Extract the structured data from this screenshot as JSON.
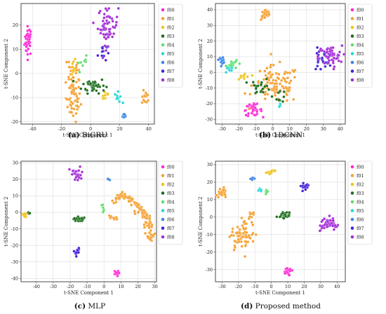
{
  "legend_labels": [
    "f00",
    "f01",
    "f02",
    "f03",
    "f04",
    "f05",
    "f06",
    "f07",
    "f08"
  ],
  "palette": [
    "#ff2bd6",
    "#f5a233",
    "#eec51e",
    "#1e6e1e",
    "#5fe06e",
    "#25d8d8",
    "#3b86e8",
    "#4522d6",
    "#a52fd8"
  ],
  "chart_data": [
    {
      "type": "scatter",
      "caption_letter": "(a)",
      "caption_name": "BiGRU",
      "xlabel": "t-SNE Component 1",
      "ylabel": "t-SNE Component 2",
      "xlim": [
        -48,
        44
      ],
      "ylim": [
        -21,
        29
      ],
      "xticks": [
        -40,
        -20,
        0,
        20,
        40
      ],
      "yticks": [
        -20,
        -10,
        0,
        10,
        20
      ],
      "grid": true,
      "legend": "right",
      "clusters": [
        {
          "name": "f00",
          "cx": -43,
          "cy": 13.5,
          "sx": 1.3,
          "sy": 3,
          "n": 36
        },
        {
          "name": "f01",
          "cx": -12,
          "cy": -10,
          "sx": 2.5,
          "sy": 5,
          "n": 60
        },
        {
          "name": "f01",
          "cx": 38,
          "cy": -10,
          "sx": 1.3,
          "sy": 1.4,
          "n": 14
        },
        {
          "name": "f01",
          "cx": -12,
          "cy": 2,
          "sx": 2,
          "sy": 2.5,
          "n": 16
        },
        {
          "name": "f02",
          "cx": -13,
          "cy": 3,
          "sx": 1.5,
          "sy": 2,
          "n": 10
        },
        {
          "name": "f02",
          "cx": 10,
          "cy": -9,
          "sx": 1.5,
          "sy": 1.2,
          "n": 12
        },
        {
          "name": "f03",
          "cx": 2,
          "cy": -5,
          "sx": 4,
          "sy": 1.6,
          "n": 40
        },
        {
          "name": "f04",
          "cx": -5,
          "cy": 4,
          "sx": 2.5,
          "sy": 1.5,
          "n": 8
        },
        {
          "name": "f05",
          "cx": 19,
          "cy": -10,
          "sx": 1.2,
          "sy": 1.1,
          "n": 10
        },
        {
          "name": "f06",
          "cx": 23,
          "cy": -17.5,
          "sx": 0.6,
          "sy": 0.7,
          "n": 9
        },
        {
          "name": "f07",
          "cx": 8,
          "cy": 9,
          "sx": 1.5,
          "sy": 2.2,
          "n": 12
        },
        {
          "name": "f08",
          "cx": 12,
          "cy": 20,
          "sx": 3.5,
          "sy": 4,
          "n": 60
        }
      ]
    },
    {
      "type": "scatter",
      "caption_letter": "(b)",
      "caption_name": "1DCNN",
      "xlabel": "t-SNE Component 1",
      "ylabel": "t-SNE Component 2",
      "xlim": [
        -34,
        43
      ],
      "ylim": [
        -33,
        44
      ],
      "xticks": [
        -30,
        -20,
        -10,
        0,
        10,
        20,
        30,
        40
      ],
      "yticks": [
        -30,
        -20,
        -10,
        0,
        10,
        20,
        30,
        40
      ],
      "grid": true,
      "legend": "right",
      "clusters": [
        {
          "name": "f00",
          "cx": -12,
          "cy": -24,
          "sx": 2.8,
          "sy": 1.8,
          "n": 36
        },
        {
          "name": "f01",
          "cx": -4,
          "cy": 37,
          "sx": 1.5,
          "sy": 1.8,
          "n": 30
        },
        {
          "name": "f01",
          "cx": 2,
          "cy": -8,
          "sx": 7,
          "sy": 6,
          "n": 95
        },
        {
          "name": "f02",
          "cx": -17,
          "cy": -3,
          "sx": 2,
          "sy": 1.5,
          "n": 10
        },
        {
          "name": "f03",
          "cx": -7,
          "cy": -9,
          "sx": 3,
          "sy": 2.5,
          "n": 20
        },
        {
          "name": "f03",
          "cx": 4,
          "cy": -15,
          "sx": 2,
          "sy": 2,
          "n": 10
        },
        {
          "name": "f04",
          "cx": -23,
          "cy": 5,
          "sx": 2.5,
          "sy": 1.2,
          "n": 16
        },
        {
          "name": "f05",
          "cx": -26,
          "cy": 2,
          "sx": 1.2,
          "sy": 1.5,
          "n": 8
        },
        {
          "name": "f05",
          "cx": 4,
          "cy": -21,
          "sx": 0.8,
          "sy": 0.8,
          "n": 5
        },
        {
          "name": "f06",
          "cx": -30,
          "cy": 8,
          "sx": 1,
          "sy": 1,
          "n": 12
        },
        {
          "name": "f07",
          "cx": 29,
          "cy": 8,
          "sx": 3,
          "sy": 3.5,
          "n": 30
        },
        {
          "name": "f08",
          "cx": 34,
          "cy": 10,
          "sx": 3.5,
          "sy": 3.5,
          "n": 50
        }
      ]
    },
    {
      "type": "scatter",
      "caption_letter": "(c)",
      "caption_name": "MLP",
      "xlabel": "t-SNE Component 1",
      "ylabel": "t-SNE Component 2",
      "xlim": [
        -49,
        31
      ],
      "ylim": [
        -42,
        31
      ],
      "xticks": [
        -40,
        -30,
        -20,
        -10,
        0,
        10,
        20,
        30
      ],
      "yticks": [
        -40,
        -30,
        -20,
        -10,
        0,
        10,
        20,
        30
      ],
      "grid": true,
      "legend": "right",
      "clusters": [
        {
          "name": "f00",
          "cx": 7,
          "cy": -37,
          "sx": 0.8,
          "sy": 0.8,
          "n": 12
        },
        {
          "name": "f01",
          "cx": 5,
          "cy": -3.5,
          "sx": 1.5,
          "sy": 1,
          "n": 8
        },
        {
          "name": "f02",
          "cx": -47,
          "cy": -1.5,
          "sx": 0.6,
          "sy": 0.7,
          "n": 12
        },
        {
          "name": "f03",
          "cx": -44,
          "cy": -1,
          "sx": 0.4,
          "sy": 0.5,
          "n": 3
        },
        {
          "name": "f03",
          "cx": -15,
          "cy": -4,
          "sx": 1.5,
          "sy": 0.8,
          "n": 22
        },
        {
          "name": "f04",
          "cx": -1,
          "cy": 2.5,
          "sx": 0.5,
          "sy": 1.5,
          "n": 6
        },
        {
          "name": "f06",
          "cx": 3,
          "cy": 20,
          "sx": 0.4,
          "sy": 0.5,
          "n": 4
        },
        {
          "name": "f07",
          "cx": -16,
          "cy": -24,
          "sx": 0.8,
          "sy": 1.2,
          "n": 14
        },
        {
          "name": "f08",
          "cx": -16,
          "cy": 23,
          "sx": 2.2,
          "sy": 2.2,
          "n": 26
        }
      ],
      "curves": [
        {
          "name": "f01",
          "points": [
            [
              6,
              7
            ],
            [
              10,
              10
            ],
            [
              14,
              9
            ],
            [
              19,
              5
            ],
            [
              22,
              1
            ],
            [
              25,
              -3
            ],
            [
              27,
              -10
            ],
            [
              28,
              -16
            ]
          ],
          "n": 120,
          "jitter": 1.2
        }
      ]
    },
    {
      "type": "scatter",
      "caption_letter": "(d)",
      "caption_name": "Proposed method",
      "xlabel": "t-SNE Component 1",
      "ylabel": "t-SNE Component 2",
      "xlim": [
        -34,
        45
      ],
      "ylim": [
        -37,
        32
      ],
      "xticks": [
        -30,
        -20,
        -10,
        0,
        10,
        20,
        30,
        40
      ],
      "yticks": [
        -30,
        -20,
        -10,
        0,
        10,
        20,
        30
      ],
      "grid": true,
      "legend": "right",
      "clusters": [
        {
          "name": "f00",
          "cx": 10,
          "cy": -31,
          "sx": 1.3,
          "sy": 1,
          "n": 20
        },
        {
          "name": "f01",
          "cx": -30,
          "cy": 14,
          "sx": 1.5,
          "sy": 1.4,
          "n": 22
        },
        {
          "name": "f01",
          "cx": -17,
          "cy": -12,
          "sx": 3.5,
          "sy": 3.5,
          "n": 50
        },
        {
          "name": "f02",
          "cx": 0,
          "cy": 26,
          "sx": 1,
          "sy": 0.8,
          "n": 16
        },
        {
          "name": "f03",
          "cx": 8,
          "cy": 1,
          "sx": 1.8,
          "sy": 1,
          "n": 26
        },
        {
          "name": "f04",
          "cx": -3,
          "cy": 15,
          "sx": 0.7,
          "sy": 0.8,
          "n": 8
        },
        {
          "name": "f05",
          "cx": -7,
          "cy": 16,
          "sx": 0.6,
          "sy": 0.7,
          "n": 6
        },
        {
          "name": "f06",
          "cx": -11,
          "cy": 22,
          "sx": 0.6,
          "sy": 0.5,
          "n": 8
        },
        {
          "name": "f07",
          "cx": 20,
          "cy": 18,
          "sx": 1.2,
          "sy": 0.8,
          "n": 18
        },
        {
          "name": "f08",
          "cx": 35,
          "cy": -4,
          "sx": 2.5,
          "sy": 1.8,
          "n": 45
        }
      ],
      "curves": [
        {
          "name": "f01",
          "points": [
            [
              -21,
              -17
            ],
            [
              -20,
              -10
            ],
            [
              -17,
              -5
            ],
            [
              -14,
              -1
            ],
            [
              -11,
              3
            ]
          ],
          "n": 30,
          "jitter": 1.6
        }
      ]
    }
  ]
}
